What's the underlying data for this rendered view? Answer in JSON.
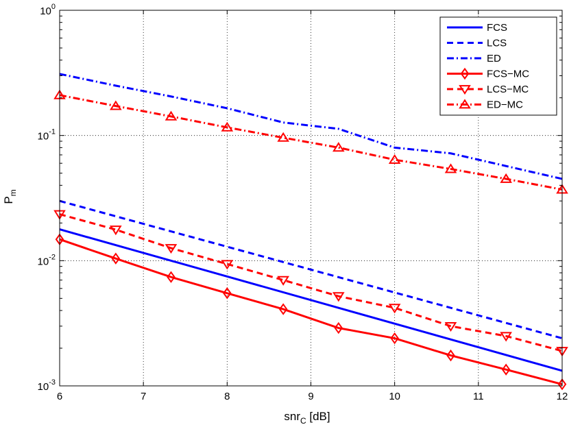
{
  "chart_data": {
    "type": "line",
    "title": "",
    "xlabel": {
      "main": "snr",
      "sub": "C",
      "rest": " [dB]"
    },
    "ylabel": {
      "main": "P",
      "sub": "m"
    },
    "xlim": [
      6,
      12
    ],
    "ylim": [
      0.001,
      1
    ],
    "yscale": "log",
    "grid": true,
    "legend_position": "top-right",
    "x_ticks": [
      "6",
      "7",
      "8",
      "9",
      "10",
      "11",
      "12"
    ],
    "y_ticks": [
      {
        "value": 0.001,
        "base": "10",
        "exp": "-3"
      },
      {
        "value": 0.01,
        "base": "10",
        "exp": "-2"
      },
      {
        "value": 0.1,
        "base": "10",
        "exp": "-1"
      },
      {
        "value": 1,
        "base": "10",
        "exp": "0"
      }
    ],
    "series": [
      {
        "name": "FCS",
        "color": "#0000ff",
        "dash": "solid",
        "marker": "none",
        "x": [
          6,
          12
        ],
        "y": [
          0.0178,
          0.00132
        ]
      },
      {
        "name": "LCS",
        "color": "#0000ff",
        "dash": "dashed",
        "marker": "none",
        "x": [
          6,
          12
        ],
        "y": [
          0.03,
          0.0024
        ]
      },
      {
        "name": "ED",
        "color": "#0000ff",
        "dash": "dashdot",
        "marker": "none",
        "x": [
          6,
          6.67,
          7.33,
          8,
          8.67,
          9.33,
          10,
          10.67,
          11.33,
          12
        ],
        "y": [
          0.31,
          0.25,
          0.205,
          0.165,
          0.127,
          0.113,
          0.08,
          0.072,
          0.057,
          0.045
        ]
      },
      {
        "name": "FCS−MC",
        "color": "#ff0000",
        "dash": "solid",
        "marker": "diamond",
        "x": [
          6,
          6.67,
          7.33,
          8,
          8.67,
          9.33,
          10,
          10.67,
          11.33,
          12
        ],
        "y": [
          0.0148,
          0.0104,
          0.0074,
          0.0055,
          0.0041,
          0.0029,
          0.0024,
          0.00175,
          0.00135,
          0.00103
        ]
      },
      {
        "name": "LCS−MC",
        "color": "#ff0000",
        "dash": "dashed",
        "marker": "triangle-down",
        "x": [
          6,
          6.67,
          7.33,
          8,
          8.67,
          9.33,
          10,
          10.67,
          11.33,
          12
        ],
        "y": [
          0.0235,
          0.0177,
          0.0126,
          0.0094,
          0.007,
          0.0052,
          0.0042,
          0.003,
          0.0025,
          0.0019
        ]
      },
      {
        "name": "ED−MC",
        "color": "#ff0000",
        "dash": "dashdot",
        "marker": "triangle-up",
        "x": [
          6,
          6.67,
          7.33,
          8,
          8.67,
          9.33,
          10,
          10.67,
          11.33,
          12
        ],
        "y": [
          0.21,
          0.172,
          0.142,
          0.116,
          0.096,
          0.08,
          0.064,
          0.054,
          0.045,
          0.037
        ]
      }
    ]
  }
}
